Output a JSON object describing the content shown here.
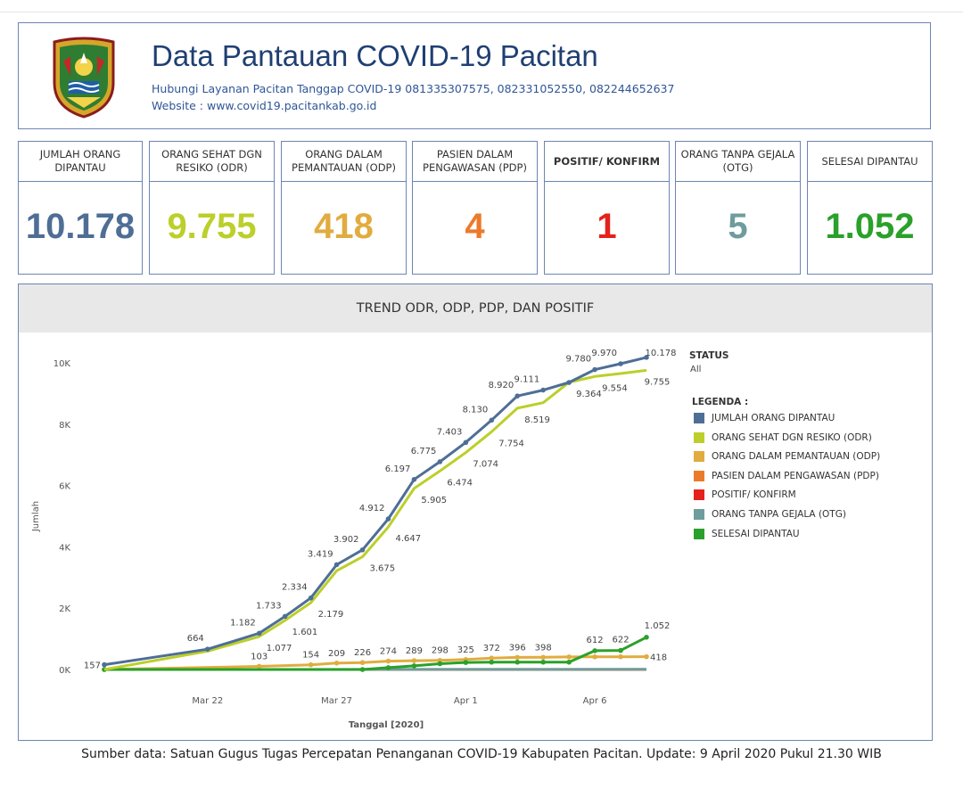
{
  "header": {
    "title": "Data Pantauan COVID-19 Pacitan",
    "hotline": "Hubungi Layanan Pacitan Tanggap COVID-19 081335307575,  082331052550, 082244652637",
    "website": "Website : www.covid19.pacitankab.go.id",
    "logo_icon": "pacitan-regency-emblem"
  },
  "kpis": [
    {
      "label": "JUMLAH ORANG DIPANTAU",
      "value": "10.178",
      "color": "#4e6e96"
    },
    {
      "label": "ORANG SEHAT DGN RESIKO (ODR)",
      "value": "9.755",
      "color": "#bccf2a"
    },
    {
      "label": "ORANG DALAM PEMANTAUAN (ODP)",
      "value": "418",
      "color": "#e1ac3f"
    },
    {
      "label": "PASIEN DALAM PENGAWASAN (PDP)",
      "value": "4",
      "color": "#ec7a2b"
    },
    {
      "label": "POSITIF/ KONFIRM",
      "value": "1",
      "color": "#e5211c"
    },
    {
      "label": "ORANG TANPA GEJALA (OTG)",
      "value": "5",
      "color": "#6f9c9c"
    },
    {
      "label": "SELESAI DIPANTAU",
      "value": "1.052",
      "color": "#2aa12a"
    }
  ],
  "chart_title": "TREND ODR, ODP, PDP, DAN POSITIF",
  "status": {
    "title": "STATUS",
    "value": "All"
  },
  "legend_title": "LEGENDA :",
  "footer": "Sumber data: Satuan Gugus Tugas Percepatan Penanganan COVID-19  Kabupaten Pacitan. Update: 9 April  2020 Pukul 21.30 WIB",
  "chart_data": {
    "type": "line",
    "xlabel": "Tanggal [2020]",
    "ylabel": "Jumlah",
    "ylim": [
      0,
      10500
    ],
    "yticks": [
      0,
      2000,
      4000,
      6000,
      8000,
      10000
    ],
    "ytick_labels": [
      "0K",
      "2K",
      "4K",
      "6K",
      "8K",
      "10K"
    ],
    "xticks": [
      "2020-03-22",
      "2020-03-27",
      "2020-04-01",
      "2020-04-06"
    ],
    "xtick_labels": [
      "Mar 22",
      "Mar 27",
      "Apr 1",
      "Apr 6"
    ],
    "legend_position": "right",
    "series": [
      {
        "name": "JUMLAH ORANG DIPANTAU",
        "color": "#4e6e96",
        "markers": true,
        "points": [
          [
            "2020-03-18",
            157
          ],
          [
            "2020-03-22",
            664
          ],
          [
            "2020-03-24",
            1182
          ],
          [
            "2020-03-25",
            1733
          ],
          [
            "2020-03-26",
            2334
          ],
          [
            "2020-03-27",
            3419
          ],
          [
            "2020-03-28",
            3902
          ],
          [
            "2020-03-29",
            4912
          ],
          [
            "2020-03-30",
            6197
          ],
          [
            "2020-03-31",
            6775
          ],
          [
            "2020-04-01",
            7403
          ],
          [
            "2020-04-02",
            8130
          ],
          [
            "2020-04-03",
            8920
          ],
          [
            "2020-04-04",
            9111
          ],
          [
            "2020-04-05",
            9360
          ],
          [
            "2020-04-06",
            9780
          ],
          [
            "2020-04-07",
            9970
          ],
          [
            "2020-04-08",
            10178
          ]
        ],
        "labels": [
          [
            "2020-03-18",
            "157"
          ],
          [
            "2020-03-22",
            "664"
          ],
          [
            "2020-03-24",
            "1.182"
          ],
          [
            "2020-03-25",
            "1.733"
          ],
          [
            "2020-03-26",
            "2.334"
          ],
          [
            "2020-03-27",
            "3.419"
          ],
          [
            "2020-03-28",
            "3.902"
          ],
          [
            "2020-03-29",
            "4.912"
          ],
          [
            "2020-03-30",
            "6.197"
          ],
          [
            "2020-03-31",
            "6.775"
          ],
          [
            "2020-04-01",
            "7.403"
          ],
          [
            "2020-04-02",
            "8.130"
          ],
          [
            "2020-04-03",
            "8.920"
          ],
          [
            "2020-04-04",
            "9.111"
          ],
          [
            "2020-04-06",
            "9.780"
          ],
          [
            "2020-04-07",
            "9.970"
          ],
          [
            "2020-04-08",
            "10.178"
          ]
        ]
      },
      {
        "name": "ORANG SEHAT DGN RESIKO (ODR)",
        "color": "#bccf2a",
        "markers": false,
        "points": [
          [
            "2020-03-18",
            0
          ],
          [
            "2020-03-22",
            600
          ],
          [
            "2020-03-24",
            1077
          ],
          [
            "2020-03-25",
            1601
          ],
          [
            "2020-03-26",
            2179
          ],
          [
            "2020-03-27",
            3220
          ],
          [
            "2020-03-28",
            3675
          ],
          [
            "2020-03-29",
            4647
          ],
          [
            "2020-03-30",
            5905
          ],
          [
            "2020-03-31",
            6474
          ],
          [
            "2020-04-01",
            7074
          ],
          [
            "2020-04-02",
            7754
          ],
          [
            "2020-04-03",
            8519
          ],
          [
            "2020-04-04",
            8700
          ],
          [
            "2020-04-05",
            9364
          ],
          [
            "2020-04-06",
            9554
          ],
          [
            "2020-04-07",
            9650
          ],
          [
            "2020-04-08",
            9755
          ]
        ],
        "labels": [
          [
            "2020-03-24",
            "1.077"
          ],
          [
            "2020-03-25",
            "1.601"
          ],
          [
            "2020-03-26",
            "2.179"
          ],
          [
            "2020-03-28",
            "3.675"
          ],
          [
            "2020-03-29",
            "4.647"
          ],
          [
            "2020-03-30",
            "5.905"
          ],
          [
            "2020-03-31",
            "6.474"
          ],
          [
            "2020-04-01",
            "7.074"
          ],
          [
            "2020-04-02",
            "7.754"
          ],
          [
            "2020-04-03",
            "8.519"
          ],
          [
            "2020-04-05",
            "9.364"
          ],
          [
            "2020-04-06",
            "9.554"
          ],
          [
            "2020-04-08",
            "9.755"
          ]
        ]
      },
      {
        "name": "ORANG DALAM PEMANTAUAN (ODP)",
        "color": "#e1ac3f",
        "markers": true,
        "points": [
          [
            "2020-03-18",
            0
          ],
          [
            "2020-03-24",
            103
          ],
          [
            "2020-03-26",
            154
          ],
          [
            "2020-03-27",
            209
          ],
          [
            "2020-03-28",
            226
          ],
          [
            "2020-03-29",
            274
          ],
          [
            "2020-03-30",
            289
          ],
          [
            "2020-03-31",
            298
          ],
          [
            "2020-04-01",
            325
          ],
          [
            "2020-04-02",
            372
          ],
          [
            "2020-04-03",
            396
          ],
          [
            "2020-04-04",
            398
          ],
          [
            "2020-04-05",
            410
          ],
          [
            "2020-04-06",
            414
          ],
          [
            "2020-04-07",
            416
          ],
          [
            "2020-04-08",
            418
          ]
        ],
        "labels": [
          [
            "2020-03-24",
            "103"
          ],
          [
            "2020-03-26",
            "154"
          ],
          [
            "2020-03-27",
            "209"
          ],
          [
            "2020-03-28",
            "226"
          ],
          [
            "2020-03-29",
            "274"
          ],
          [
            "2020-03-30",
            "289"
          ],
          [
            "2020-03-31",
            "298"
          ],
          [
            "2020-04-01",
            "325"
          ],
          [
            "2020-04-02",
            "372"
          ],
          [
            "2020-04-03",
            "396"
          ],
          [
            "2020-04-04",
            "398"
          ],
          [
            "2020-04-08",
            "418"
          ]
        ]
      },
      {
        "name": "PASIEN DALAM PENGAWASAN (PDP)",
        "color": "#ec7a2b",
        "markers": false,
        "points": [
          [
            "2020-03-18",
            0
          ],
          [
            "2020-04-08",
            4
          ]
        ],
        "labels": []
      },
      {
        "name": "POSITIF/ KONFIRM",
        "color": "#e5211c",
        "markers": false,
        "points": [
          [
            "2020-03-18",
            0
          ],
          [
            "2020-04-08",
            1
          ]
        ],
        "labels": []
      },
      {
        "name": "ORANG TANPA GEJALA (OTG)",
        "color": "#6f9c9c",
        "markers": false,
        "points": [
          [
            "2020-03-18",
            0
          ],
          [
            "2020-04-08",
            5
          ]
        ],
        "labels": []
      },
      {
        "name": "SELESAI DIPANTAU",
        "color": "#2aa12a",
        "markers": true,
        "points": [
          [
            "2020-03-18",
            0
          ],
          [
            "2020-03-28",
            0
          ],
          [
            "2020-03-29",
            60
          ],
          [
            "2020-03-30",
            120
          ],
          [
            "2020-03-31",
            190
          ],
          [
            "2020-04-01",
            230
          ],
          [
            "2020-04-02",
            240
          ],
          [
            "2020-04-03",
            240
          ],
          [
            "2020-04-04",
            240
          ],
          [
            "2020-04-05",
            240
          ],
          [
            "2020-04-06",
            612
          ],
          [
            "2020-04-07",
            622
          ],
          [
            "2020-04-08",
            1052
          ]
        ],
        "labels": [
          [
            "2020-04-06",
            "612"
          ],
          [
            "2020-04-07",
            "622"
          ],
          [
            "2020-04-08",
            "1.052"
          ]
        ]
      }
    ]
  }
}
